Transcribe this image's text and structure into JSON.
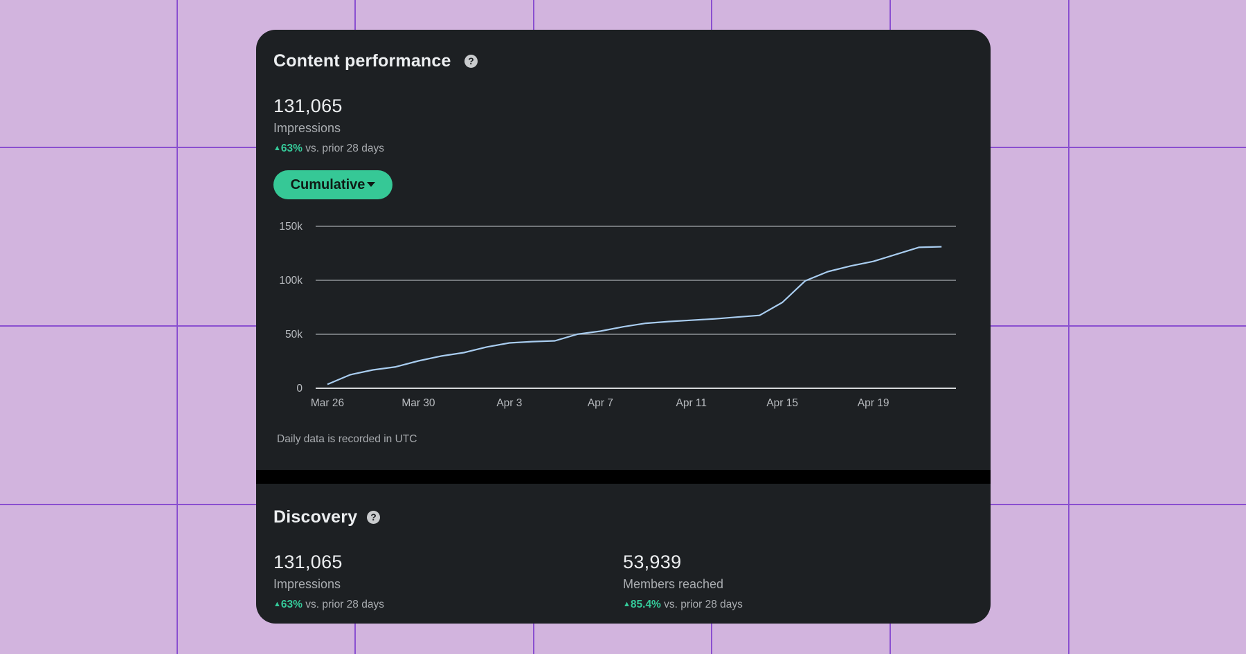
{
  "content_performance": {
    "title": "Content performance",
    "help_icon": "question-circle-icon",
    "impressions_value": "131,065",
    "impressions_label": "Impressions",
    "delta_value": "63%",
    "delta_text": "vs. prior 28 days",
    "delta_icon": "triangle-up-icon",
    "dropdown_label": "Cumulative",
    "dropdown_icon": "caret-down-icon",
    "footnote": "Daily data is recorded in UTC"
  },
  "discovery": {
    "title": "Discovery",
    "help_icon": "question-circle-icon",
    "impressions_value": "131,065",
    "impressions_label": "Impressions",
    "impressions_delta_value": "63%",
    "impressions_delta_text": "vs. prior 28 days",
    "members_value": "53,939",
    "members_label": "Members reached",
    "members_delta_value": "85.4%",
    "members_delta_text": "vs. prior 28 days"
  },
  "colors": {
    "background": "#d2b4de",
    "grid_lines": "#8a4fd0",
    "card": "#1d2023",
    "accent_green": "#36c896",
    "line": "#a9cdf0"
  },
  "chart_data": {
    "type": "line",
    "title": "",
    "xlabel": "",
    "ylabel": "",
    "ylim": [
      0,
      150000
    ],
    "y_ticks": [
      0,
      50000,
      100000,
      150000
    ],
    "y_tick_labels": [
      "0",
      "50k",
      "100k",
      "150k"
    ],
    "x_ticks": [
      0,
      4,
      8,
      12,
      16,
      20,
      24
    ],
    "x_tick_labels": [
      "Mar 26",
      "Mar 30",
      "Apr 3",
      "Apr 7",
      "Apr 11",
      "Apr 15",
      "Apr 19"
    ],
    "grid": true,
    "legend": "none",
    "series": [
      {
        "values": [
          3600,
          12500,
          17000,
          19800,
          25300,
          29800,
          33000,
          38200,
          42000,
          43200,
          43900,
          50100,
          52900,
          56900,
          60200,
          61800,
          63000,
          64200,
          65900,
          67500,
          79500,
          99400,
          108000,
          113300,
          117500,
          124000,
          130500,
          131065
        ]
      }
    ]
  }
}
